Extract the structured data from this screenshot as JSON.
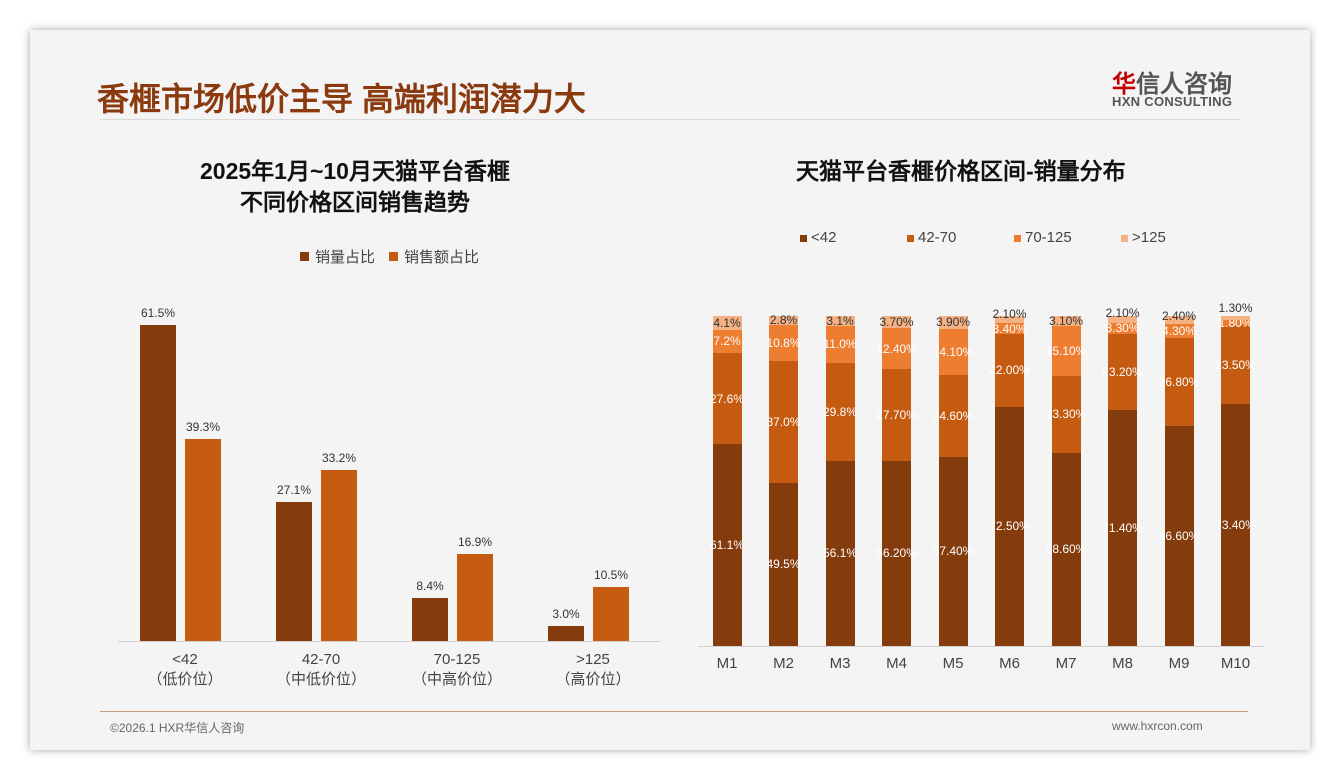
{
  "header": {
    "title": "香榧市场低价主导 高端利润潜力大",
    "logo_cn_red": "华",
    "logo_cn": "信人咨询",
    "logo_en": "HXN CONSULTING"
  },
  "footer": {
    "copyright": "©2026.1 HXR华信人咨询",
    "website": "www.hxrcon.com"
  },
  "colors": {
    "c1": "#843C0C",
    "c2": "#C55A11",
    "c3": "#ED7D31",
    "c4": "#F4B183"
  },
  "chart_data": [
    {
      "type": "bar",
      "title_line1": "2025年1月~10月天猫平台香榧",
      "title_line2": "不同价格区间销售趋势",
      "categories": [
        "<42",
        "42-70",
        "70-125",
        ">125"
      ],
      "subcategories": [
        "（低价位）",
        "（中低价位）",
        "（中高价位）",
        "（高价位）"
      ],
      "series": [
        {
          "name": "销量占比",
          "values": [
            61.5,
            27.1,
            8.4,
            3.0
          ]
        },
        {
          "name": "销售额占比",
          "values": [
            39.3,
            33.2,
            16.9,
            10.5
          ]
        }
      ],
      "ylim": [
        0,
        65
      ]
    },
    {
      "type": "bar",
      "stacked": true,
      "title": "天猫平台香榧价格区间-销量分布",
      "categories": [
        "M1",
        "M2",
        "M3",
        "M4",
        "M5",
        "M6",
        "M7",
        "M8",
        "M9",
        "M10"
      ],
      "series": [
        {
          "name": "<42",
          "values": [
            61.1,
            49.5,
            56.1,
            56.2,
            57.4,
            72.5,
            58.6,
            71.4,
            66.6,
            73.4
          ],
          "labels": [
            "61.1%",
            "49.5%",
            "56.1%",
            "56.20%",
            "57.40%",
            "72.50%",
            "58.60%",
            "71.40%",
            "66.60%",
            "73.40%"
          ]
        },
        {
          "name": "42-70",
          "values": [
            27.6,
            37.0,
            29.8,
            27.7,
            24.6,
            22.0,
            23.3,
            23.2,
            26.8,
            23.5
          ],
          "labels": [
            "27.6%",
            "37.0%",
            "29.8%",
            "27.70%",
            "24.60%",
            "22.00%",
            "23.30%",
            "23.20%",
            "26.80%",
            "23.50%"
          ]
        },
        {
          "name": "70-125",
          "values": [
            7.2,
            10.8,
            11.0,
            12.4,
            14.1,
            3.4,
            15.1,
            3.3,
            4.3,
            1.8
          ],
          "labels": [
            "7.2%",
            "10.8%",
            "11.0%",
            "12.40%",
            "14.10%",
            "3.40%",
            "15.10%",
            "3.30%",
            "4.30%",
            "1.80%"
          ]
        },
        {
          "name": ">125",
          "values": [
            4.1,
            2.8,
            3.1,
            3.7,
            3.9,
            2.1,
            3.1,
            2.1,
            2.4,
            1.3
          ],
          "labels": [
            "4.1%",
            "2.8%",
            "3.1%",
            "3.70%",
            "3.90%",
            "2.10%",
            "3.10%",
            "2.10%",
            "2.40%",
            "1.30%"
          ]
        }
      ],
      "ylim": [
        0,
        100
      ]
    }
  ]
}
